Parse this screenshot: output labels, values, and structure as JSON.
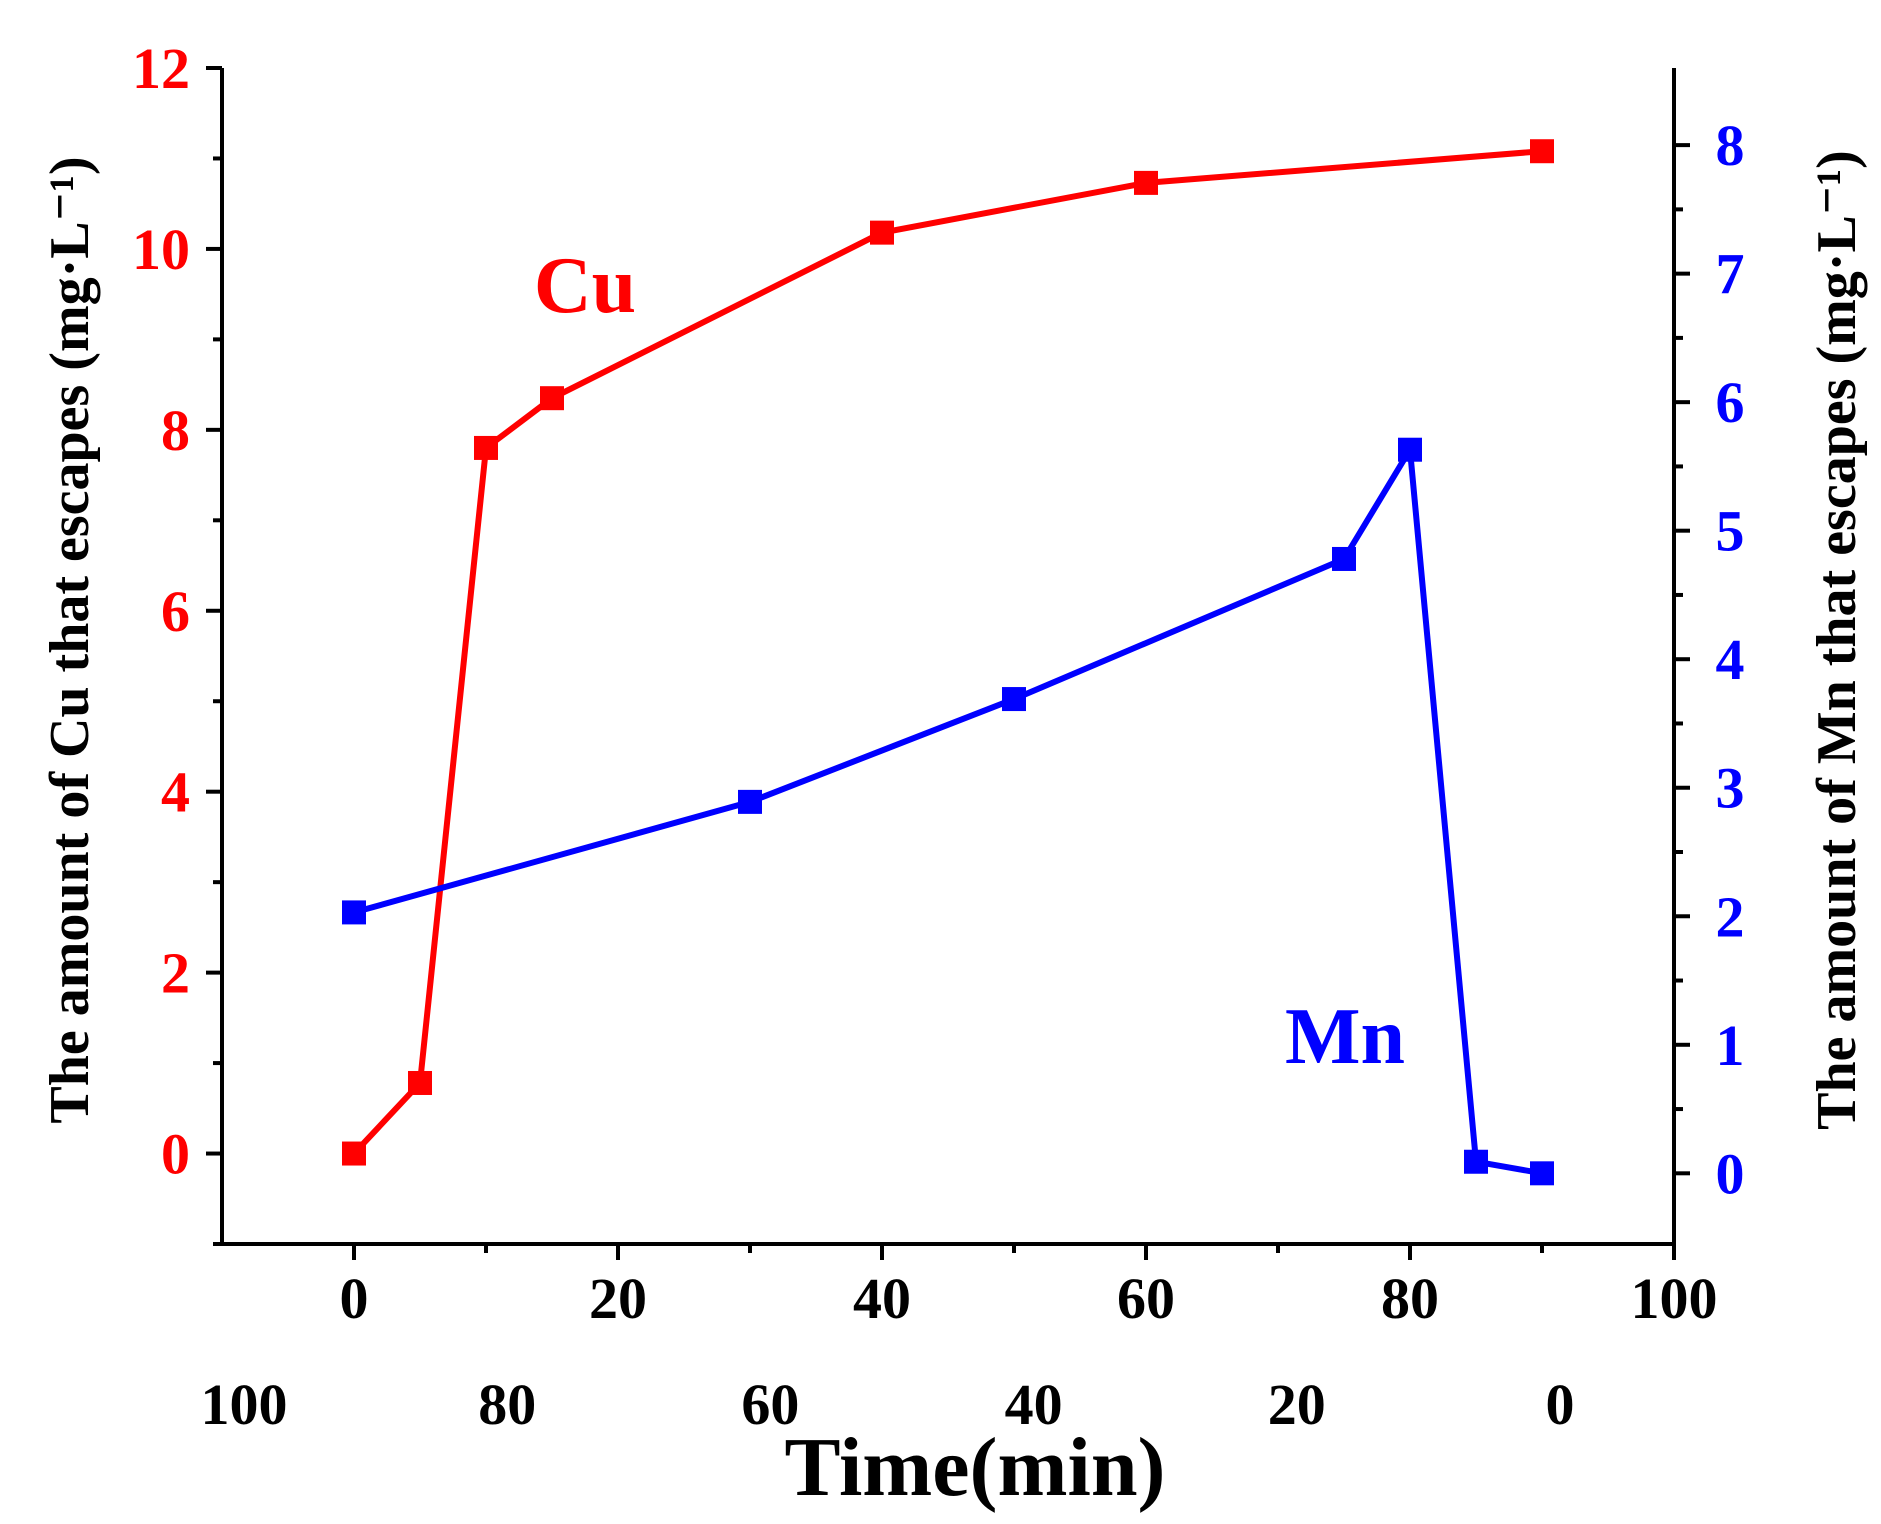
{
  "colors": {
    "cu": "#ff0000",
    "mn": "#0000ff",
    "axis": "#000000",
    "background": "#ffffff"
  },
  "chart_data": {
    "type": "line",
    "xlabel": "Time(min)",
    "x_bottom": {
      "range": [
        -10,
        100
      ],
      "ticks": [
        0,
        20,
        40,
        60,
        80,
        100
      ],
      "tick_labels": [
        "0",
        "20",
        "40",
        "60",
        "80",
        "100"
      ],
      "minor_ticks": [
        10,
        30,
        50,
        70,
        90
      ]
    },
    "x_secondary": {
      "note": "reversed scale printed below primary axis",
      "ticks": [
        100,
        80,
        60,
        40,
        20,
        0
      ],
      "tick_labels": [
        "100",
        "80",
        "60",
        "40",
        "20",
        "0"
      ]
    },
    "y_left": {
      "label": "The amount of Cu that escapes (mg·L⁻¹)",
      "range": [
        -1,
        12
      ],
      "ticks": [
        0,
        2,
        4,
        6,
        8,
        10,
        12
      ],
      "tick_labels": [
        "0",
        "2",
        "4",
        "6",
        "8",
        "10",
        "12"
      ],
      "minor_ticks": [
        -1,
        1,
        3,
        5,
        7,
        9,
        11
      ],
      "color": "#ff0000"
    },
    "y_right": {
      "label": "The amount of Mn that escapes (mg·L⁻¹)",
      "range": [
        -0.55,
        8.6
      ],
      "ticks": [
        0,
        1,
        2,
        3,
        4,
        5,
        6,
        7,
        8
      ],
      "tick_labels": [
        "0",
        "1",
        "2",
        "3",
        "4",
        "5",
        "6",
        "7",
        "8"
      ],
      "minor_ticks": [
        0.5,
        1.5,
        2.5,
        3.5,
        4.5,
        5.5,
        6.5,
        7.5
      ],
      "color": "#0000ff"
    },
    "series": [
      {
        "name": "Cu",
        "axis": "left",
        "color": "#ff0000",
        "x": [
          0,
          5,
          10,
          15,
          40,
          60,
          90
        ],
        "y": [
          0,
          0.78,
          7.8,
          8.35,
          10.18,
          10.73,
          11.08
        ]
      },
      {
        "name": "Mn",
        "axis": "right",
        "color": "#0000ff",
        "x": [
          0,
          30,
          50,
          75,
          80,
          85,
          90
        ],
        "y": [
          2.03,
          2.89,
          3.69,
          4.78,
          5.63,
          0.09,
          0
        ]
      }
    ],
    "annotations": [
      {
        "text": "Cu",
        "color": "#ff0000"
      },
      {
        "text": "Mn",
        "color": "#0000ff"
      }
    ],
    "grid": false
  }
}
